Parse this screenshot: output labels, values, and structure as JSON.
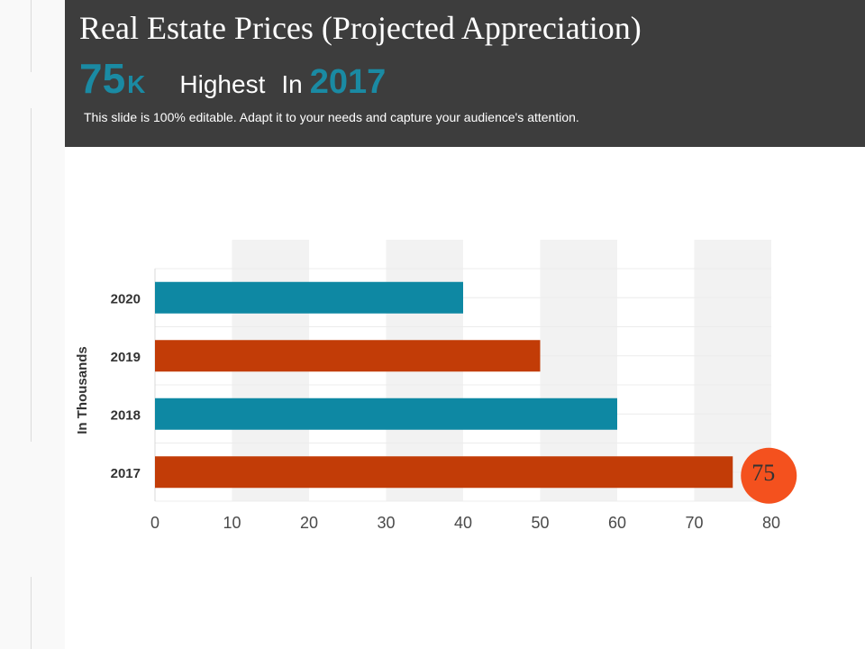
{
  "header": {
    "title": "Real Estate Prices (Projected Appreciation)",
    "kpi_value": "75",
    "kpi_unit": "K",
    "kpi_text": "Highest",
    "kpi_text2": "In",
    "kpi_year": "2017",
    "subtitle": "This slide is 100% editable. Adapt it to your needs and capture your audience's attention."
  },
  "chart_data": {
    "type": "bar",
    "orientation": "horizontal",
    "categories": [
      "2020",
      "2019",
      "2018",
      "2017"
    ],
    "values": [
      40,
      50,
      60,
      75
    ],
    "bar_colors": [
      "#0e88a3",
      "#c23c07",
      "#0e88a3",
      "#c23c07"
    ],
    "xlabel": "",
    "ylabel": "In Thousands",
    "xlim": [
      0,
      80
    ],
    "xticks": [
      0,
      10,
      20,
      30,
      40,
      50,
      60,
      70,
      80
    ],
    "grid": true,
    "highlight": {
      "category": "2017",
      "label": "75",
      "color": "#f4511e"
    }
  },
  "colors": {
    "header_bg": "#3d3d3d",
    "accent_teal": "#1a8aa3",
    "accent_orange": "#c23c07",
    "band": "#f2f2f2"
  }
}
